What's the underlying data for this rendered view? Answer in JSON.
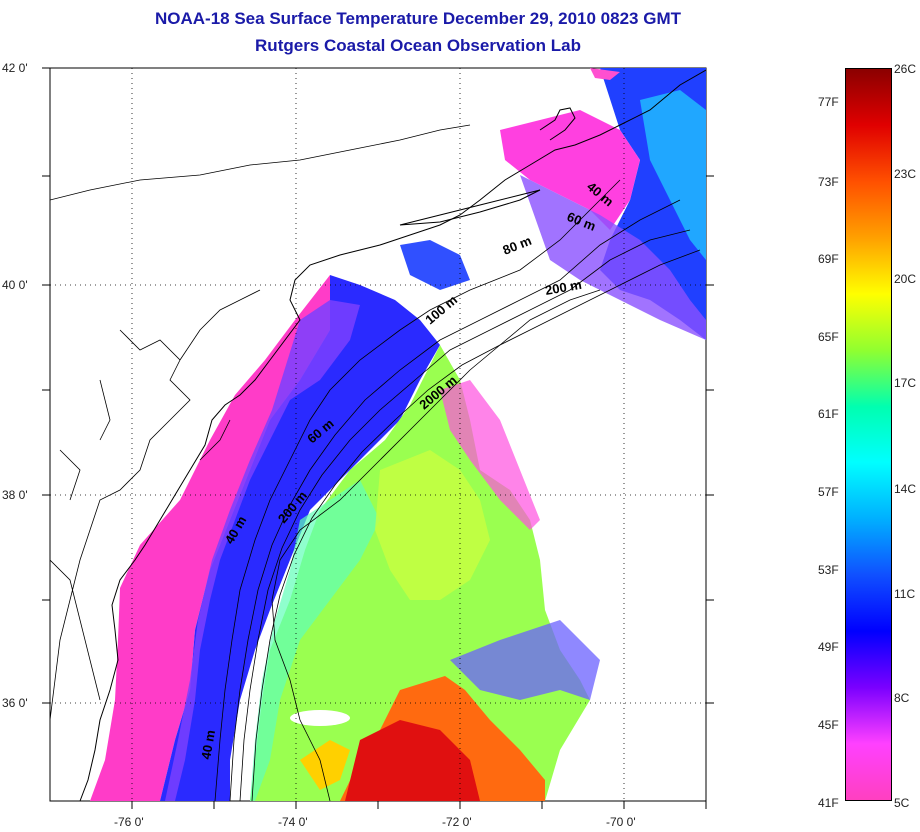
{
  "title": {
    "line1": "NOAA-18 Sea Surface Temperature December 29, 2010 0823 GMT",
    "line2": "Rutgers Coastal Ocean Observation Lab"
  },
  "map": {
    "lat_labels": [
      "42 0'",
      "40 0'",
      "38 0'",
      "36 0'"
    ],
    "lon_labels": [
      "-76 0'",
      "-74 0'",
      "-72 0'",
      "-70 0'"
    ],
    "contour_labels": [
      "40 m",
      "60 m",
      "80 m",
      "200 m",
      "100 m",
      "60 m",
      "2000 m",
      "200 m",
      "40 m",
      "40 m"
    ]
  },
  "colorbar": {
    "fahrenheit": [
      "77F",
      "73F",
      "69F",
      "65F",
      "61F",
      "57F",
      "53F",
      "49F",
      "45F",
      "41F"
    ],
    "celsius": [
      "26C",
      "23C",
      "20C",
      "17C",
      "14C",
      "11C",
      "8C",
      "5C"
    ],
    "colors": [
      "#8b0000",
      "#e00000",
      "#ff5000",
      "#ffa000",
      "#ffff00",
      "#90ff30",
      "#00ffb0",
      "#00ffff",
      "#00b0ff",
      "#1050ff",
      "#0000ff",
      "#7a00ff",
      "#ff40ff",
      "#ff40c0"
    ]
  }
}
